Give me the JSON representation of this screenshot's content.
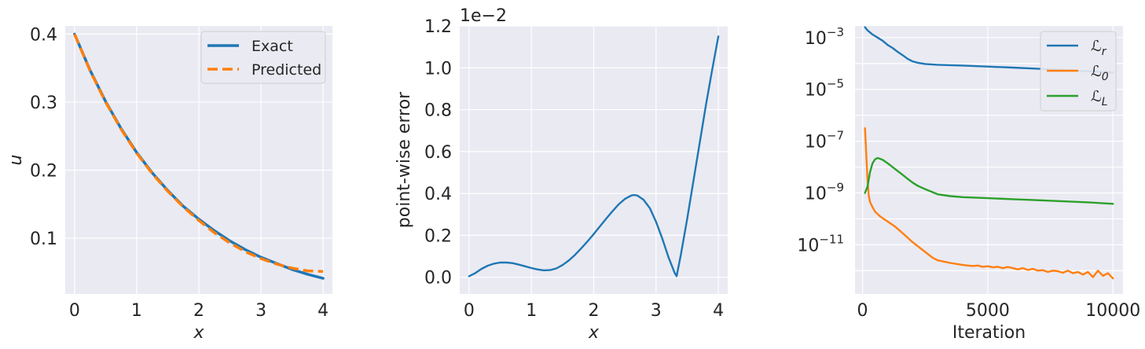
{
  "chart_data": [
    {
      "type": "line",
      "title": "",
      "xlabel": "x",
      "ylabel": "u",
      "xlim": [
        -0.15,
        4.15
      ],
      "ylim": [
        0.018,
        0.412
      ],
      "xticks": [
        0,
        1,
        2,
        3,
        4
      ],
      "xtick_labels": [
        "0",
        "1",
        "2",
        "3",
        "4"
      ],
      "yticks": [
        0.1,
        0.2,
        0.3,
        0.4
      ],
      "ytick_labels": [
        "0.1",
        "0.2",
        "0.3",
        "0.4"
      ],
      "grid": true,
      "legend_position": "top-right",
      "series": [
        {
          "name": "Exact",
          "color": "#1f77b4",
          "style": "solid",
          "x": [
            0,
            0.25,
            0.5,
            0.75,
            1.0,
            1.25,
            1.5,
            1.75,
            2.0,
            2.25,
            2.5,
            2.75,
            3.0,
            3.25,
            3.5,
            3.75,
            4.0
          ],
          "y": [
            0.4,
            0.347,
            0.301,
            0.261,
            0.226,
            0.196,
            0.17,
            0.147,
            0.128,
            0.111,
            0.096,
            0.083,
            0.072,
            0.063,
            0.054,
            0.047,
            0.041
          ]
        },
        {
          "name": "Predicted",
          "color": "#ff7f0e",
          "style": "dashed",
          "x": [
            0,
            0.25,
            0.5,
            0.75,
            1.0,
            1.25,
            1.5,
            1.75,
            2.0,
            2.25,
            2.5,
            2.75,
            3.0,
            3.25,
            3.5,
            3.75,
            4.0
          ],
          "y": [
            0.4,
            0.346,
            0.3,
            0.26,
            0.225,
            0.195,
            0.169,
            0.146,
            0.126,
            0.108,
            0.093,
            0.08,
            0.07,
            0.062,
            0.056,
            0.052,
            0.051
          ]
        }
      ]
    },
    {
      "type": "line",
      "title": "",
      "xlabel": "x",
      "ylabel": "point-wise error",
      "offset_text": "1e−2",
      "xlim": [
        -0.15,
        4.15
      ],
      "ylim": [
        -0.08,
        1.2
      ],
      "xticks": [
        0,
        1,
        2,
        3,
        4
      ],
      "xtick_labels": [
        "0",
        "1",
        "2",
        "3",
        "4"
      ],
      "yticks": [
        0.0,
        0.2,
        0.4,
        0.6,
        0.8,
        1.0,
        1.2
      ],
      "ytick_labels": [
        "0.0",
        "0.2",
        "0.4",
        "0.6",
        "0.8",
        "1.0",
        "1.2"
      ],
      "grid": true,
      "series": [
        {
          "color": "#1f77b4",
          "x": [
            0,
            0.1,
            0.2,
            0.3,
            0.4,
            0.5,
            0.6,
            0.7,
            0.8,
            0.9,
            1.0,
            1.1,
            1.2,
            1.3,
            1.4,
            1.5,
            1.6,
            1.7,
            1.8,
            1.9,
            2.0,
            2.1,
            2.2,
            2.3,
            2.4,
            2.5,
            2.6,
            2.65,
            2.7,
            2.8,
            2.9,
            3.0,
            3.1,
            3.2,
            3.3,
            3.33,
            3.4,
            3.5,
            3.6,
            3.7,
            3.8,
            3.9,
            4.0
          ],
          "y": [
            0.005,
            0.02,
            0.04,
            0.055,
            0.065,
            0.07,
            0.07,
            0.067,
            0.06,
            0.052,
            0.044,
            0.037,
            0.033,
            0.034,
            0.042,
            0.058,
            0.08,
            0.107,
            0.138,
            0.171,
            0.206,
            0.243,
            0.28,
            0.315,
            0.348,
            0.374,
            0.39,
            0.393,
            0.39,
            0.37,
            0.33,
            0.265,
            0.185,
            0.095,
            0.02,
            0.005,
            0.11,
            0.28,
            0.46,
            0.64,
            0.82,
            0.99,
            1.15
          ]
        }
      ]
    },
    {
      "type": "line",
      "title": "",
      "xlabel": "Iteration",
      "ylabel": "",
      "yscale": "log",
      "xlim": [
        -300,
        10400
      ],
      "ylim_log10": [
        -12.9,
        -2.55
      ],
      "xticks": [
        0,
        5000,
        10000
      ],
      "xtick_labels": [
        "0",
        "5000",
        "10000"
      ],
      "yticks_log10": [
        -3,
        -5,
        -7,
        -9,
        -11
      ],
      "ytick_bases": [
        "10",
        "10",
        "10",
        "10",
        "10"
      ],
      "ytick_exponents": [
        "−3",
        "−5",
        "−7",
        "−9",
        "−11"
      ],
      "grid": true,
      "legend_position": "top-right",
      "series": [
        {
          "name": "L_r",
          "legend_main": "ℒ",
          "legend_sub": "r",
          "color": "#1f77b4",
          "x": [
            100,
            200,
            400,
            600,
            800,
            1000,
            1200,
            1400,
            1600,
            1800,
            2000,
            2200,
            2500,
            3000,
            4000,
            5000,
            6000,
            7000,
            8000,
            9000,
            10000
          ],
          "log10_y": [
            -2.6,
            -2.72,
            -2.88,
            -3.0,
            -3.12,
            -3.28,
            -3.4,
            -3.55,
            -3.68,
            -3.82,
            -3.92,
            -3.97,
            -4.02,
            -4.05,
            -4.08,
            -4.12,
            -4.16,
            -4.2,
            -4.25,
            -4.3,
            -4.35
          ]
        },
        {
          "name": "L_0",
          "legend_main": "ℒ",
          "legend_sub": "0",
          "color": "#ff7f0e",
          "x": [
            100,
            150,
            200,
            250,
            300,
            400,
            500,
            700,
            1000,
            1300,
            1600,
            2000,
            2400,
            2800,
            3000,
            3500,
            4000,
            4200,
            4400,
            4600,
            4800,
            5000,
            5200,
            5400,
            5600,
            5800,
            6000,
            6200,
            6400,
            6600,
            6800,
            7000,
            7200,
            7400,
            7600,
            7800,
            8000,
            8200,
            8400,
            8600,
            8800,
            9000,
            9200,
            9400,
            9600,
            9800,
            10000
          ],
          "log10_y": [
            -6.5,
            -7.5,
            -8.5,
            -9.1,
            -9.35,
            -9.55,
            -9.72,
            -9.9,
            -10.1,
            -10.3,
            -10.55,
            -10.9,
            -11.2,
            -11.5,
            -11.6,
            -11.7,
            -11.78,
            -11.8,
            -11.82,
            -11.8,
            -11.85,
            -11.83,
            -11.87,
            -11.85,
            -11.9,
            -11.86,
            -11.9,
            -11.95,
            -11.9,
            -11.97,
            -11.93,
            -12.0,
            -11.98,
            -12.05,
            -12.0,
            -12.02,
            -12.08,
            -12.0,
            -12.1,
            -12.05,
            -12.15,
            -12.05,
            -12.25,
            -12.0,
            -12.2,
            -12.1,
            -12.3
          ]
        },
        {
          "name": "L_L",
          "legend_main": "ℒ",
          "legend_sub": "L",
          "color": "#2ca02c",
          "x": [
            100,
            200,
            300,
            400,
            500,
            600,
            700,
            800,
            1000,
            1200,
            1400,
            1600,
            1800,
            2000,
            2200,
            2500,
            2800,
            3000,
            3500,
            4000,
            5000,
            6000,
            7000,
            8000,
            9000,
            10000
          ],
          "log10_y": [
            -9.0,
            -8.75,
            -8.2,
            -7.85,
            -7.7,
            -7.65,
            -7.68,
            -7.72,
            -7.85,
            -8.0,
            -8.15,
            -8.3,
            -8.45,
            -8.6,
            -8.72,
            -8.85,
            -8.97,
            -9.05,
            -9.12,
            -9.16,
            -9.2,
            -9.24,
            -9.28,
            -9.32,
            -9.36,
            -9.42
          ]
        }
      ]
    }
  ]
}
